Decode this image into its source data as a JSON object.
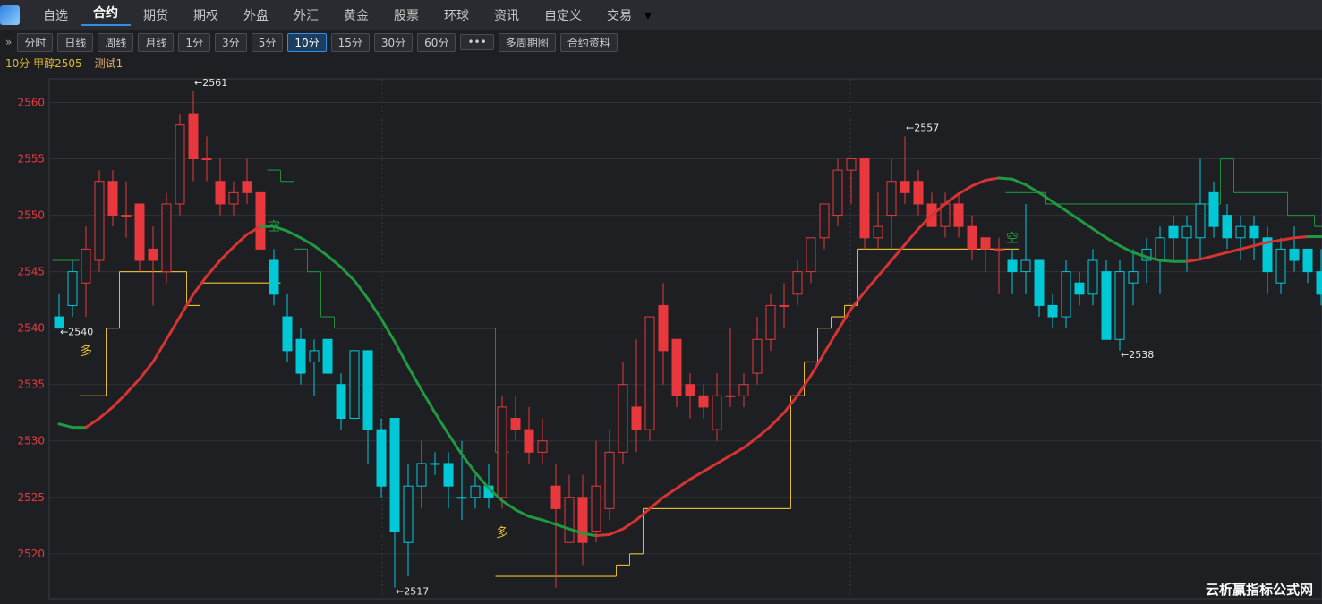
{
  "tabs": [
    "自选",
    "合约",
    "期货",
    "期权",
    "外盘",
    "外汇",
    "黄金",
    "股票",
    "环球",
    "资讯",
    "自定义",
    "交易"
  ],
  "toolbar": [
    "分时",
    "日线",
    "周线",
    "月线",
    "1分",
    "3分",
    "5分",
    "10分",
    "15分",
    "30分",
    "60分",
    "•••",
    "多周期图",
    "合约资料"
  ],
  "info": {
    "symbol": "10分 甲醇2505",
    "indicator": "测试1"
  },
  "watermark": "云析赢指标公式网",
  "chart_data": {
    "type": "candlestick",
    "open": [
      2541,
      2542,
      2544,
      2546,
      2553,
      2550,
      2551,
      2547,
      2545,
      2551,
      2559,
      2555,
      2553,
      2551,
      2553,
      2552,
      2546,
      2541,
      2539,
      2537,
      2539,
      2535,
      2532,
      2538,
      2531,
      2532,
      2521,
      2526,
      2528,
      2528,
      2525,
      2525,
      2526,
      2525,
      2532,
      2531,
      2529,
      2526,
      2521,
      2525,
      2522,
      2524,
      2529,
      2533,
      2531,
      2542,
      2539,
      2535,
      2534,
      2531,
      2534,
      2534,
      2536,
      2539,
      2542,
      2543,
      2545,
      2548,
      2550,
      2554,
      2555,
      2548,
      2550,
      2553,
      2553,
      2551,
      2549,
      2551,
      2549,
      2548,
      2547,
      2546,
      2545,
      2546,
      2542,
      2541,
      2544,
      2543,
      2545,
      2539,
      2544,
      2546,
      2546,
      2549,
      2548,
      2548,
      2552,
      2550,
      2548,
      2549,
      2548,
      2544,
      2547,
      2547,
      2545
    ],
    "high": [
      2543,
      2546,
      2549,
      2554,
      2554,
      2553,
      2551,
      2549,
      2552,
      2559,
      2561,
      2557,
      2555,
      2553,
      2555,
      2552,
      2547,
      2543,
      2540,
      2539,
      2539,
      2536,
      2538,
      2538,
      2532,
      2532,
      2528,
      2530,
      2529,
      2529,
      2530,
      2527,
      2528,
      2534,
      2534,
      2533,
      2532,
      2528,
      2527,
      2527,
      2530,
      2531,
      2537,
      2539,
      2541,
      2544,
      2539,
      2536,
      2535,
      2536,
      2540,
      2536,
      2541,
      2543,
      2544,
      2546,
      2548,
      2551,
      2555,
      2555,
      2555,
      2552,
      2555,
      2557,
      2554,
      2552,
      2552,
      2552,
      2550,
      2548,
      2548,
      2547,
      2551,
      2546,
      2543,
      2546,
      2545,
      2547,
      2546,
      2546,
      2547,
      2548,
      2549,
      2550,
      2550,
      2555,
      2553,
      2551,
      2550,
      2550,
      2549,
      2548,
      2549,
      2547,
      2547
    ],
    "low": [
      2540,
      2541,
      2541,
      2545,
      2549,
      2548,
      2545,
      2542,
      2544,
      2550,
      2553,
      2553,
      2550,
      2550,
      2551,
      2547,
      2542,
      2537,
      2535,
      2534,
      2536,
      2531,
      2532,
      2528,
      2525,
      2517,
      2518,
      2524,
      2527,
      2524,
      2523,
      2524,
      2524,
      2524,
      2530,
      2528,
      2528,
      2517,
      2521,
      2519,
      2521,
      2523,
      2528,
      2529,
      2530,
      2535,
      2533,
      2532,
      2532,
      2530,
      2533,
      2533,
      2535,
      2538,
      2540,
      2542,
      2544,
      2547,
      2549,
      2551,
      2547,
      2547,
      2547,
      2551,
      2550,
      2549,
      2548,
      2548,
      2546,
      2545,
      2543,
      2543,
      2543,
      2541,
      2540,
      2540,
      2542,
      2542,
      2539,
      2538,
      2542,
      2544,
      2543,
      2546,
      2545,
      2546,
      2548,
      2547,
      2546,
      2546,
      2543,
      2543,
      2545,
      2544,
      2542
    ],
    "close": [
      2540,
      2545,
      2547,
      2553,
      2550,
      2550,
      2546,
      2546,
      2551,
      2558,
      2555,
      2555,
      2551,
      2552,
      2552,
      2547,
      2543,
      2538,
      2536,
      2538,
      2536,
      2532,
      2538,
      2531,
      2526,
      2522,
      2526,
      2528,
      2528,
      2526,
      2525,
      2526,
      2525,
      2533,
      2531,
      2529,
      2530,
      2524,
      2525,
      2521,
      2526,
      2529,
      2535,
      2531,
      2541,
      2538,
      2534,
      2534,
      2533,
      2534,
      2534,
      2535,
      2539,
      2542,
      2542,
      2545,
      2548,
      2551,
      2554,
      2555,
      2548,
      2549,
      2553,
      2552,
      2551,
      2549,
      2551,
      2549,
      2547,
      2547,
      2547,
      2545,
      2546,
      2542,
      2541,
      2545,
      2543,
      2546,
      2539,
      2545,
      2545,
      2547,
      2548,
      2548,
      2549,
      2551,
      2549,
      2548,
      2549,
      2548,
      2545,
      2547,
      2546,
      2545,
      2543
    ],
    "colors": [
      "#00c8d7",
      "#00c8d7",
      "#e8383d",
      "#e8383d",
      "#e8383d",
      "#e8383d",
      "#e8383d",
      "#e8383d",
      "#e8383d",
      "#e8383d",
      "#e8383d",
      "#e8383d",
      "#e8383d",
      "#e8383d",
      "#e8383d",
      "#e8383d",
      "#00c8d7",
      "#00c8d7",
      "#00c8d7",
      "#00c8d7",
      "#00c8d7",
      "#00c8d7",
      "#00c8d7",
      "#00c8d7",
      "#00c8d7",
      "#00c8d7",
      "#00c8d7",
      "#00c8d7",
      "#00c8d7",
      "#00c8d7",
      "#00c8d7",
      "#00c8d7",
      "#00c8d7",
      "#e8383d",
      "#e8383d",
      "#e8383d",
      "#e8383d",
      "#e8383d",
      "#e8383d",
      "#e8383d",
      "#e8383d",
      "#e8383d",
      "#e8383d",
      "#e8383d",
      "#e8383d",
      "#e8383d",
      "#e8383d",
      "#e8383d",
      "#e8383d",
      "#e8383d",
      "#e8383d",
      "#e8383d",
      "#e8383d",
      "#e8383d",
      "#e8383d",
      "#e8383d",
      "#e8383d",
      "#e8383d",
      "#e8383d",
      "#e8383d",
      "#e8383d",
      "#e8383d",
      "#e8383d",
      "#e8383d",
      "#e8383d",
      "#e8383d",
      "#e8383d",
      "#e8383d",
      "#e8383d",
      "#e8383d",
      "#e8383d",
      "#00c8d7",
      "#00c8d7",
      "#00c8d7",
      "#00c8d7",
      "#00c8d7",
      "#00c8d7",
      "#00c8d7",
      "#00c8d7",
      "#00c8d7",
      "#00c8d7",
      "#00c8d7",
      "#00c8d7",
      "#00c8d7",
      "#00c8d7",
      "#00c8d7",
      "#00c8d7",
      "#00c8d7",
      "#00c8d7",
      "#00c8d7",
      "#00c8d7",
      "#00c8d7",
      "#00c8d7",
      "#00c8d7",
      "#00c8d7"
    ],
    "ma": {
      "colors": [
        "#d63333",
        "#1f9a3e"
      ],
      "values": [
        2531.5,
        2531.2,
        2531.2,
        2532,
        2533,
        2534.2,
        2535.5,
        2537,
        2539,
        2541,
        2543,
        2544.6,
        2546,
        2547.2,
        2548.3,
        2549,
        2549,
        2548.6,
        2548,
        2547.3,
        2546.4,
        2545.4,
        2544.2,
        2542.6,
        2540.8,
        2538.8,
        2536.6,
        2534.5,
        2532.5,
        2530.6,
        2528.8,
        2527.2,
        2525.8,
        2524.7,
        2523.9,
        2523.3,
        2523,
        2522.6,
        2522.2,
        2521.8,
        2521.6,
        2521.7,
        2522.2,
        2523,
        2524,
        2525,
        2525.8,
        2526.6,
        2527.3,
        2528,
        2528.7,
        2529.4,
        2530.3,
        2531.3,
        2532.5,
        2534,
        2535.8,
        2537.8,
        2539.8,
        2541.7,
        2543.2,
        2544.6,
        2546,
        2547.4,
        2548.8,
        2550,
        2551,
        2551.9,
        2552.6,
        2553.1,
        2553.3,
        2553.2,
        2552.7,
        2552,
        2551.2,
        2550.4,
        2549.6,
        2548.8,
        2548,
        2547.3,
        2546.7,
        2546.3,
        2546,
        2545.9,
        2545.9,
        2546.1,
        2546.4,
        2546.7,
        2547,
        2547.3,
        2547.6,
        2547.8,
        2548,
        2548.1,
        2548.1
      ]
    },
    "support": {
      "color": "#e0b832",
      "values": [
        null,
        null,
        2534,
        2534,
        2540,
        2545,
        2545,
        2545,
        2545,
        2545,
        2542,
        2544,
        2544,
        2544,
        2544,
        2544,
        2544,
        null,
        null,
        null,
        null,
        null,
        null,
        null,
        null,
        null,
        null,
        null,
        null,
        null,
        null,
        null,
        null,
        2518,
        2518,
        2518,
        2518,
        2518,
        2518,
        2518,
        2518,
        2518,
        2519,
        2520,
        2524,
        2524,
        2524,
        2524,
        2524,
        2524,
        2524,
        2524,
        2524,
        2524,
        2524,
        2534,
        2537,
        2540,
        2541,
        2542,
        2547,
        2547,
        2547,
        2547,
        2547,
        2547,
        2547,
        2547,
        2547,
        2547,
        2547,
        2547,
        null,
        null,
        null,
        null,
        null,
        null,
        null,
        null,
        null,
        null,
        null,
        null,
        null,
        null,
        null,
        null,
        null,
        null,
        null,
        null,
        null,
        null,
        null
      ]
    },
    "resistance": {
      "color": "#1f8a3a",
      "values": [
        2546,
        2546,
        null,
        null,
        null,
        null,
        null,
        null,
        null,
        null,
        null,
        null,
        null,
        null,
        null,
        null,
        2554,
        2553,
        2547,
        2545,
        2541,
        2540,
        2540,
        2540,
        2540,
        2540,
        2540,
        2540,
        2540,
        2540,
        2540,
        2540,
        2540,
        2529,
        null,
        null,
        null,
        null,
        null,
        null,
        null,
        null,
        null,
        null,
        null,
        null,
        null,
        null,
        null,
        null,
        null,
        null,
        null,
        null,
        null,
        null,
        null,
        null,
        null,
        null,
        null,
        null,
        null,
        null,
        null,
        null,
        null,
        null,
        null,
        null,
        null,
        2552,
        2552,
        2552,
        2551,
        2551,
        2551,
        2551,
        2551,
        2551,
        2551,
        2551,
        2551,
        2551,
        2551,
        2551,
        2551,
        2555,
        2552,
        2552,
        2552,
        2552,
        2550,
        2550,
        2549
      ]
    },
    "annotations": [
      "←2561",
      "←2540",
      "←2517",
      "←2557",
      "←2538"
    ],
    "signals": [
      {
        "text": "多",
        "color": "#e0b832"
      },
      {
        "text": "空",
        "color": "#1f9a3e"
      },
      {
        "text": "多",
        "color": "#e0b832"
      },
      {
        "text": "空",
        "color": "#1f9a3e"
      }
    ],
    "ylim": [
      2516.1,
      2562.1
    ],
    "yticks": [
      2520,
      2525,
      2530,
      2535,
      2540,
      2545,
      2550,
      2555,
      2560
    ],
    "tick_color": "#e8383d"
  }
}
